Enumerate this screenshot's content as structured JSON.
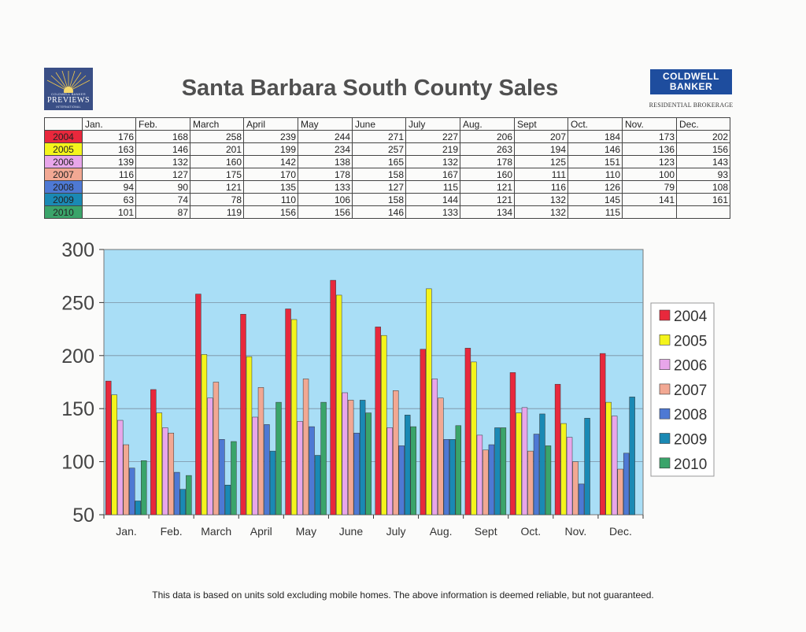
{
  "title": "Santa Barbara South County Sales",
  "footnote": "This data is based on units sold excluding mobile homes. The above information is deemed reliable, but not guaranteed.",
  "logo_left": {
    "top": "COLDWELL BANKER",
    "main": "PREVIEWS",
    "bottom": "INTERNATIONAL"
  },
  "logo_right": {
    "line1": "COLDWELL",
    "line2": "BANKER",
    "sub": "RESIDENTIAL BROKERAGE"
  },
  "colors": {
    "2004": "#e8283c",
    "2005": "#f4f41c",
    "2006": "#e8a6ea",
    "2007": "#f2a893",
    "2008": "#4e79d4",
    "2009": "#1a89b4",
    "2010": "#3aa46a",
    "plot_bg": "#a9def6"
  },
  "table": {
    "months": [
      "Jan.",
      "Feb.",
      "March",
      "April",
      "May",
      "June",
      "July",
      "Aug.",
      "Sept",
      "Oct.",
      "Nov.",
      "Dec."
    ]
  },
  "chart_data": {
    "type": "bar",
    "title": "Santa Barbara South County Sales",
    "categories": [
      "Jan.",
      "Feb.",
      "March",
      "April",
      "May",
      "June",
      "July",
      "Aug.",
      "Sept",
      "Oct.",
      "Nov.",
      "Dec."
    ],
    "series": [
      {
        "name": "2004",
        "values": [
          176,
          168,
          258,
          239,
          244,
          271,
          227,
          206,
          207,
          184,
          173,
          202
        ]
      },
      {
        "name": "2005",
        "values": [
          163,
          146,
          201,
          199,
          234,
          257,
          219,
          263,
          194,
          146,
          136,
          156
        ]
      },
      {
        "name": "2006",
        "values": [
          139,
          132,
          160,
          142,
          138,
          165,
          132,
          178,
          125,
          151,
          123,
          143
        ]
      },
      {
        "name": "2007",
        "values": [
          116,
          127,
          175,
          170,
          178,
          158,
          167,
          160,
          111,
          110,
          100,
          93
        ]
      },
      {
        "name": "2008",
        "values": [
          94,
          90,
          121,
          135,
          133,
          127,
          115,
          121,
          116,
          126,
          79,
          108
        ]
      },
      {
        "name": "2009",
        "values": [
          63,
          74,
          78,
          110,
          106,
          158,
          144,
          121,
          132,
          145,
          141,
          161
        ]
      },
      {
        "name": "2010",
        "values": [
          101,
          87,
          119,
          156,
          156,
          146,
          133,
          134,
          132,
          115,
          null,
          null
        ]
      }
    ],
    "ylim": [
      50,
      300
    ],
    "yticks": [
      300,
      250,
      200,
      150,
      100,
      50
    ],
    "grid": true,
    "legend": "right"
  }
}
